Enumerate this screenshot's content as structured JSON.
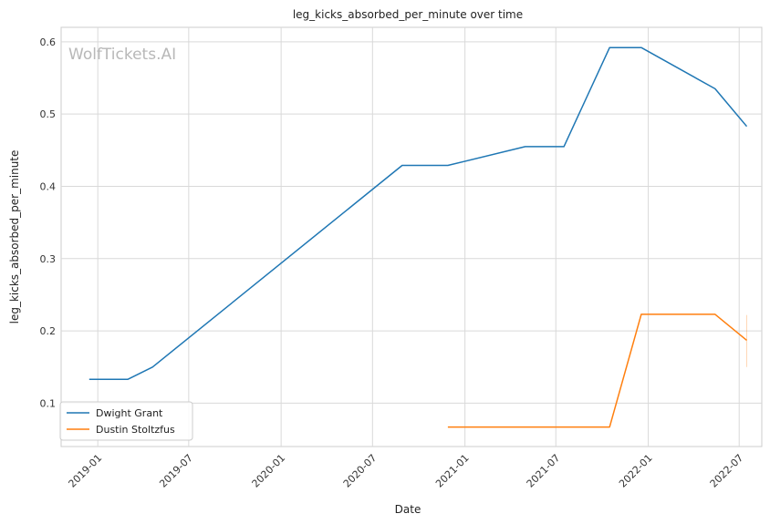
{
  "chart_data": {
    "type": "line",
    "title": "leg_kicks_absorbed_per_minute over time",
    "xlabel": "Date",
    "ylabel": "leg_kicks_absorbed_per_minute",
    "watermark": "WolfTickets.AI",
    "x_ticks": [
      "2019-01",
      "2019-07",
      "2020-01",
      "2020-07",
      "2021-01",
      "2021-07",
      "2022-01",
      "2022-07"
    ],
    "y_ticks": [
      "0.1",
      "0.2",
      "0.3",
      "0.4",
      "0.5",
      "0.6"
    ],
    "xlim": [
      "2018-10-20",
      "2022-08-15"
    ],
    "ylim": [
      0.04,
      0.62
    ],
    "grid": true,
    "legend_position": "lower-left",
    "colors": {
      "Dwight Grant": "#1f77b4",
      "Dustin Stoltzfus": "#ff7f0e"
    },
    "series": [
      {
        "name": "Dwight Grant",
        "points": [
          {
            "x": "2018-12-15",
            "y": 0.133
          },
          {
            "x": "2019-03-02",
            "y": 0.133
          },
          {
            "x": "2019-04-20",
            "y": 0.15
          },
          {
            "x": "2020-08-29",
            "y": 0.429
          },
          {
            "x": "2020-11-28",
            "y": 0.429
          },
          {
            "x": "2021-05-01",
            "y": 0.455
          },
          {
            "x": "2021-07-17",
            "y": 0.455
          },
          {
            "x": "2021-10-16",
            "y": 0.592
          },
          {
            "x": "2021-12-18",
            "y": 0.592
          },
          {
            "x": "2022-05-14",
            "y": 0.535
          },
          {
            "x": "2022-07-16",
            "y": 0.483
          }
        ]
      },
      {
        "name": "Dustin Stoltzfus",
        "points": [
          {
            "x": "2020-11-28",
            "y": 0.067
          },
          {
            "x": "2021-10-16",
            "y": 0.067
          },
          {
            "x": "2021-12-18",
            "y": 0.223
          },
          {
            "x": "2022-05-14",
            "y": 0.223
          },
          {
            "x": "2022-07-16",
            "y": 0.187
          }
        ],
        "error_bar": {
          "x": "2022-07-16",
          "low": 0.15,
          "high": 0.222
        }
      }
    ]
  }
}
